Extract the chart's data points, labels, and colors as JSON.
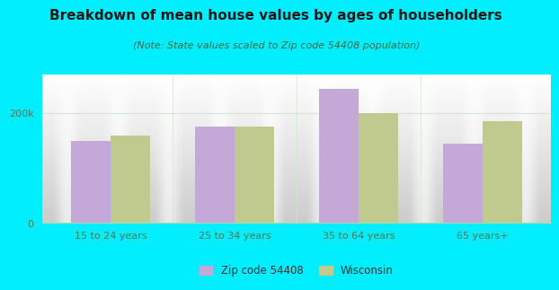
{
  "title": "Breakdown of mean house values by ages of householders",
  "subtitle": "(Note: State values scaled to Zip code 54408 population)",
  "categories": [
    "15 to 24 years",
    "25 to 34 years",
    "35 to 64 years",
    "65 years+"
  ],
  "zip_values": [
    150000,
    175000,
    245000,
    145000
  ],
  "state_values": [
    160000,
    175000,
    200000,
    185000
  ],
  "zip_color": "#c4a8d8",
  "state_color": "#c0ca8e",
  "background_color": "#00eeff",
  "ylim": [
    0,
    270000
  ],
  "yticks": [
    0,
    200000
  ],
  "ytick_labels": [
    "0",
    "200k"
  ],
  "legend_zip_label": "Zip code 54408",
  "legend_state_label": "Wisconsin",
  "title_fontsize": 11,
  "subtitle_fontsize": 8,
  "bar_width": 0.32,
  "plot_bg_top": "#ffffff",
  "plot_bg_bottom": "#c8eacc",
  "grid_line_color": "#d0e8d0",
  "spine_color": "#aaddaa",
  "tick_color": "#557755"
}
